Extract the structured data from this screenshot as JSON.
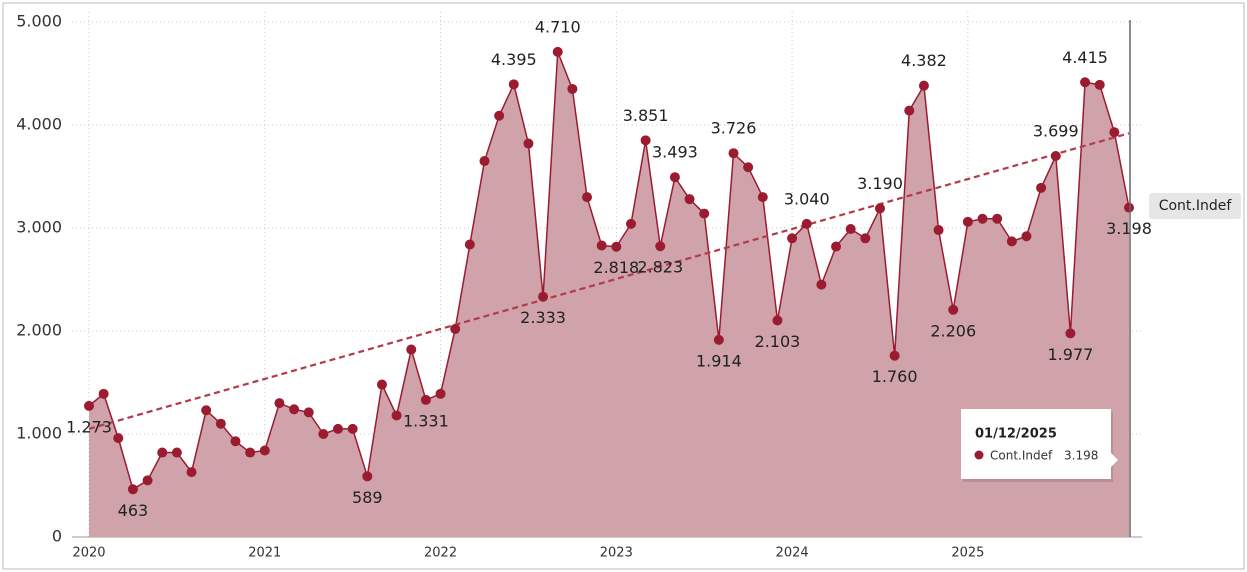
{
  "chart_data": {
    "type": "area",
    "categories": [
      null,
      null,
      null,
      null,
      null,
      null,
      null,
      null,
      null,
      null,
      null,
      null,
      null,
      null,
      null,
      null,
      null,
      null,
      null,
      null,
      null,
      null,
      null,
      null,
      null,
      null,
      null,
      null,
      null,
      null,
      null,
      null,
      null,
      null,
      null,
      null,
      null,
      null,
      null,
      null,
      null,
      null,
      null,
      null,
      null,
      null,
      null,
      null,
      null,
      null,
      null,
      null,
      null,
      null,
      null,
      null,
      null,
      null,
      null,
      null,
      null,
      null,
      null,
      null,
      null,
      null,
      null,
      null,
      null,
      null,
      null,
      "01/12/2025"
    ],
    "series": [
      {
        "name": "Cont.Indef",
        "color": "#9b1b30",
        "fill": "#cfa3a9",
        "values": [
          1273,
          1390,
          960,
          463,
          550,
          820,
          820,
          630,
          1230,
          1100,
          930,
          820,
          840,
          1300,
          1240,
          1210,
          1000,
          1050,
          1050,
          589,
          1480,
          1180,
          1820,
          1331,
          1390,
          2020,
          2840,
          3650,
          4090,
          4395,
          3820,
          2333,
          4710,
          4350,
          3300,
          2830,
          2818,
          3040,
          3851,
          2823,
          3493,
          3280,
          3140,
          1914,
          3726,
          3590,
          3300,
          2103,
          2900,
          3040,
          2450,
          2820,
          2990,
          2900,
          3190,
          1760,
          4140,
          4382,
          2980,
          2206,
          3060,
          3090,
          3090,
          2870,
          2920,
          3390,
          3699,
          1977,
          4415,
          4390,
          3930,
          3198
        ],
        "value_labels": [
          "1.273",
          null,
          null,
          "463",
          null,
          null,
          null,
          null,
          null,
          null,
          null,
          null,
          null,
          null,
          null,
          null,
          null,
          null,
          null,
          "589",
          null,
          null,
          null,
          "1.331",
          null,
          null,
          null,
          null,
          null,
          "4.395",
          null,
          "2.333",
          "4.710",
          null,
          null,
          null,
          "2.818",
          null,
          "3.851",
          "2.823",
          "3.493",
          null,
          null,
          "1.914",
          "3.726",
          null,
          null,
          "2.103",
          null,
          "3.040",
          null,
          null,
          null,
          null,
          "3.190",
          "1.760",
          null,
          "4.382",
          null,
          "2.206",
          null,
          null,
          null,
          null,
          null,
          null,
          "3.699",
          "1.977",
          "4.415",
          null,
          null,
          "3.198"
        ]
      }
    ],
    "trendline": {
      "color": "#b23a4a",
      "values": [
        1050,
        3920
      ]
    },
    "ylim": [
      0,
      5000
    ],
    "yticks": [
      0,
      {
        "value": 1000,
        "label": "1.000"
      },
      {
        "value": 2000,
        "label": "2.000"
      },
      {
        "value": 3000,
        "label": "3.000"
      },
      {
        "value": 4000,
        "label": "4.000"
      },
      {
        "value": 5000,
        "label": "5.000"
      }
    ],
    "xlim": [
      0,
      71
    ],
    "xticks": [
      {
        "value": 0,
        "label": "2020"
      },
      {
        "value": 12,
        "label": "2021"
      },
      {
        "value": 24,
        "label": "2022"
      },
      {
        "value": 36,
        "label": "2023"
      },
      {
        "value": 48,
        "label": "2024"
      },
      {
        "value": 60,
        "label": "2025"
      }
    ],
    "grid": true
  }
}
